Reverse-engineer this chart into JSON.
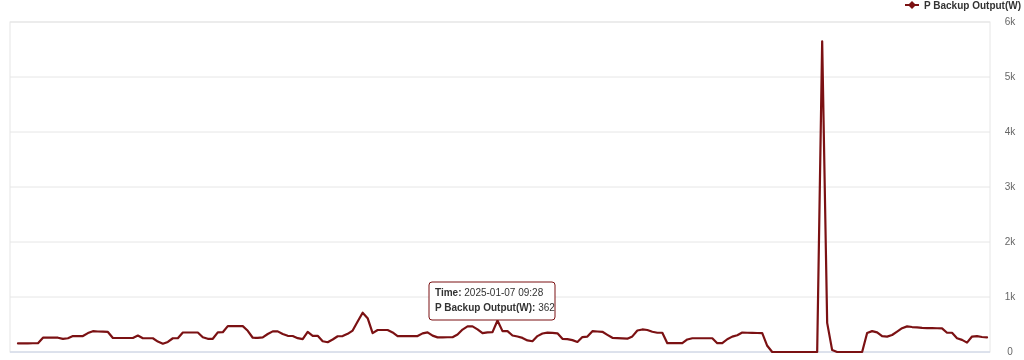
{
  "chart_data": {
    "type": "line",
    "categories": [
      null,
      null,
      null,
      null,
      null,
      null,
      null,
      null,
      null,
      null,
      null,
      null,
      null,
      null,
      null,
      null,
      null,
      null,
      null,
      null,
      null,
      null,
      null,
      null,
      null,
      null,
      null,
      null,
      null,
      null,
      null,
      null,
      null,
      null,
      null,
      null,
      null,
      null,
      null,
      null,
      null,
      null,
      null,
      null,
      null,
      null,
      null,
      null,
      null,
      null,
      null,
      null,
      null,
      null,
      null,
      null,
      null,
      null,
      null,
      null,
      null,
      null,
      null,
      null,
      null,
      null,
      null,
      null,
      null,
      null,
      null,
      null,
      null,
      null,
      null,
      null,
      null,
      null,
      null,
      null,
      null,
      null,
      null,
      null,
      null,
      null,
      null,
      null,
      null,
      null,
      null,
      null,
      null,
      null,
      null,
      null,
      null,
      null,
      null,
      null,
      null,
      null,
      null,
      null,
      null,
      null,
      null,
      null,
      null,
      null,
      null,
      null,
      null,
      null,
      null,
      null,
      null,
      null,
      null,
      null,
      null,
      null,
      null,
      null,
      null,
      null,
      null,
      null,
      null,
      null,
      null,
      null,
      null,
      null,
      null,
      null,
      null,
      null,
      null,
      null,
      null,
      null,
      null,
      null,
      null,
      null,
      null,
      null,
      null,
      null,
      null,
      null,
      null,
      null,
      null,
      null,
      null,
      null,
      null,
      null,
      null,
      null,
      null,
      null,
      null,
      null,
      null,
      null,
      null,
      null,
      null,
      null,
      null,
      null,
      null,
      null,
      null,
      null,
      null,
      null,
      null,
      null,
      null,
      null,
      null,
      null,
      null,
      null,
      null,
      null,
      null,
      null,
      null,
      null,
      null
    ],
    "series": [
      {
        "name": "P Backup Output(W)",
        "color": "#7b1113",
        "values": [
          157,
          158,
          158,
          159,
          160,
          260,
          260,
          260,
          260,
          238,
          250,
          290,
          290,
          290,
          344,
          378,
          373,
          369,
          365,
          255,
          255,
          255,
          255,
          255,
          300,
          250,
          250,
          250,
          190,
          150,
          183,
          250,
          250,
          355,
          355,
          355,
          355,
          269,
          240,
          240,
          356,
          359,
          470,
          470,
          470,
          470,
          386,
          259,
          257,
          267,
          327,
          375,
          375,
          327,
          294,
          291,
          252,
          234,
          364,
          295,
          295,
          196,
          178,
          228,
          286,
          289,
          330,
          390,
          553,
          715,
          615,
          343,
          400,
          400,
          400,
          356,
          290,
          290,
          290,
          290,
          290,
          339,
          358,
          297,
          266,
          267,
          268,
          269,
          318,
          408,
          465,
          465,
          411,
          343,
          357,
          362,
          573,
          380,
          380,
          300,
          281,
          256,
          211,
          196,
          289,
          336,
          352,
          346,
          340,
          239,
          234,
          216,
          182,
          272,
          280,
          379,
          373,
          367,
          312,
          258,
          253,
          248,
          243,
          284,
          390,
          410,
          400,
          369,
          350,
          350,
          160,
          160,
          160,
          160,
          228,
          250,
          250,
          250,
          250,
          250,
          160,
          160,
          232,
          280,
          305,
          353,
          350,
          348,
          345,
          343,
          113,
          0,
          0,
          0,
          0,
          0,
          0,
          0,
          0,
          0,
          0,
          5650,
          530,
          35,
          0,
          0,
          0,
          0,
          0,
          0,
          347,
          380,
          358,
          287,
          280,
          309,
          370,
          433,
          466,
          454,
          446,
          438,
          434,
          433,
          432,
          430,
          350,
          350,
          250,
          221,
          170,
          281,
          288,
          273,
          265
        ]
      }
    ],
    "ylim": [
      0,
      6000
    ],
    "yticks": [
      0,
      {
        "value": 1000,
        "label": "1k"
      },
      {
        "value": 2000,
        "label": "2k"
      },
      {
        "value": 3000,
        "label": "3k"
      },
      {
        "value": 4000,
        "label": "4k"
      },
      {
        "value": 5000,
        "label": "5k"
      },
      {
        "value": 6000,
        "label": "6k"
      }
    ],
    "grid": "y",
    "legend": "top right",
    "annotations": [
      "Time: 2025-01-07 09:28",
      "P Backup Output(W): 362"
    ]
  }
}
